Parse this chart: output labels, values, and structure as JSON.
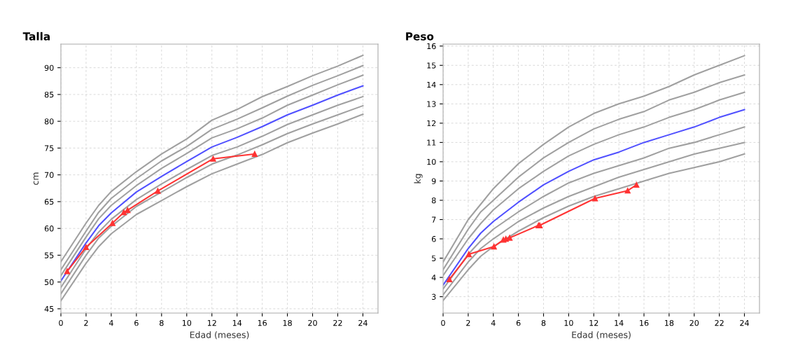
{
  "chart_data": [
    {
      "type": "line",
      "title": "Talla",
      "xlabel": "Edad (meses)",
      "ylabel": "cm",
      "x": [
        0,
        2,
        3,
        4,
        6,
        8,
        10,
        12,
        14,
        16,
        18,
        20,
        22,
        24
      ],
      "xlim": [
        0,
        25.2
      ],
      "ylim": [
        44.2,
        94.4
      ],
      "xticks": [
        0,
        2,
        4,
        6,
        8,
        10,
        12,
        14,
        16,
        18,
        20,
        22,
        24
      ],
      "yticks": [
        45,
        50,
        55,
        60,
        65,
        70,
        75,
        80,
        85,
        90
      ],
      "grid": true,
      "series": [
        {
          "color": "#a0a0a0",
          "values": [
            53.8,
            61.0,
            64.3,
            66.9,
            70.6,
            73.9,
            76.7,
            80.2,
            82.2,
            84.6,
            86.5,
            88.5,
            90.3,
            92.3
          ]
        },
        {
          "color": "#a0a0a0",
          "values": [
            52.3,
            59.5,
            63.0,
            65.6,
            69.3,
            72.6,
            75.3,
            78.5,
            80.4,
            82.5,
            84.7,
            86.7,
            88.5,
            90.4
          ]
        },
        {
          "color": "#a0a0a0",
          "values": [
            51.2,
            58.4,
            61.8,
            64.3,
            68.0,
            71.2,
            74.0,
            76.9,
            78.6,
            80.6,
            83.0,
            84.9,
            86.8,
            88.6
          ]
        },
        {
          "color": "#5050ff",
          "values": [
            50.2,
            57.3,
            60.5,
            62.9,
            66.8,
            69.7,
            72.5,
            75.2,
            77.0,
            79.0,
            81.2,
            83.0,
            84.9,
            86.6
          ]
        },
        {
          "color": "#a0a0a0",
          "values": [
            49.0,
            56.2,
            59.3,
            61.7,
            65.4,
            68.3,
            71.0,
            73.6,
            75.2,
            77.2,
            79.4,
            81.2,
            83.0,
            84.6
          ]
        },
        {
          "color": "#a0a0a0",
          "values": [
            47.8,
            55.0,
            58.2,
            60.4,
            64.1,
            66.8,
            69.5,
            72.0,
            73.7,
            75.6,
            77.7,
            79.5,
            81.2,
            82.9
          ]
        },
        {
          "color": "#a0a0a0",
          "values": [
            46.5,
            53.5,
            56.6,
            59.0,
            62.6,
            65.2,
            67.8,
            70.2,
            72.0,
            73.8,
            76.0,
            77.8,
            79.5,
            81.3
          ]
        },
        {
          "color": "#ff3333",
          "marker": "triangle",
          "x": [
            0.5,
            2.0,
            4.1,
            5.0,
            5.3,
            7.7,
            12.1,
            15.4
          ],
          "values": [
            52.0,
            56.5,
            61.0,
            63.0,
            63.4,
            67.0,
            73.0,
            73.9
          ]
        }
      ]
    },
    {
      "type": "line",
      "title": "Peso",
      "xlabel": "Edad (meses)",
      "ylabel": "kg",
      "x": [
        0,
        2,
        3,
        4,
        6,
        8,
        10,
        12,
        14,
        16,
        18,
        20,
        22,
        24
      ],
      "xlim": [
        0,
        25.2
      ],
      "ylim": [
        2.15,
        16.1
      ],
      "xticks": [
        0,
        2,
        4,
        6,
        8,
        10,
        12,
        14,
        16,
        18,
        20,
        22,
        24
      ],
      "yticks": [
        3,
        4,
        5,
        6,
        7,
        8,
        9,
        10,
        11,
        12,
        13,
        14,
        15,
        16
      ],
      "grid": true,
      "series": [
        {
          "color": "#a0a0a0",
          "values": [
            4.8,
            7.0,
            7.8,
            8.6,
            9.9,
            10.9,
            11.8,
            12.5,
            13.0,
            13.4,
            13.9,
            14.5,
            15.0,
            15.5
          ]
        },
        {
          "color": "#a0a0a0",
          "values": [
            4.4,
            6.5,
            7.4,
            8.0,
            9.2,
            10.2,
            11.0,
            11.7,
            12.2,
            12.6,
            13.2,
            13.6,
            14.1,
            14.5
          ]
        },
        {
          "color": "#a0a0a0",
          "values": [
            4.1,
            6.0,
            6.8,
            7.5,
            8.6,
            9.5,
            10.3,
            10.9,
            11.4,
            11.8,
            12.3,
            12.7,
            13.2,
            13.6
          ]
        },
        {
          "color": "#5050ff",
          "values": [
            3.6,
            5.5,
            6.3,
            6.9,
            7.9,
            8.8,
            9.5,
            10.1,
            10.5,
            11.0,
            11.4,
            11.8,
            12.3,
            12.7
          ]
        },
        {
          "color": "#a0a0a0",
          "values": [
            3.4,
            5.2,
            5.9,
            6.5,
            7.4,
            8.2,
            8.9,
            9.4,
            9.8,
            10.2,
            10.7,
            11.0,
            11.4,
            11.8
          ]
        },
        {
          "color": "#a0a0a0",
          "values": [
            3.1,
            4.8,
            5.5,
            6.0,
            6.9,
            7.6,
            8.2,
            8.7,
            9.2,
            9.6,
            10.0,
            10.4,
            10.7,
            11.0
          ]
        },
        {
          "color": "#a0a0a0",
          "values": [
            2.8,
            4.4,
            5.1,
            5.6,
            6.4,
            7.1,
            7.7,
            8.2,
            8.6,
            9.0,
            9.4,
            9.7,
            10.0,
            10.4
          ]
        },
        {
          "color": "#ff3333",
          "marker": "triangle",
          "x": [
            0.5,
            2.05,
            4.05,
            4.8,
            5.0,
            5.3,
            7.6,
            7.7,
            12.1,
            14.7,
            15.4
          ],
          "values": [
            3.9,
            5.2,
            5.6,
            5.95,
            6.0,
            6.05,
            6.7,
            6.7,
            8.1,
            8.5,
            8.8
          ]
        }
      ]
    }
  ]
}
